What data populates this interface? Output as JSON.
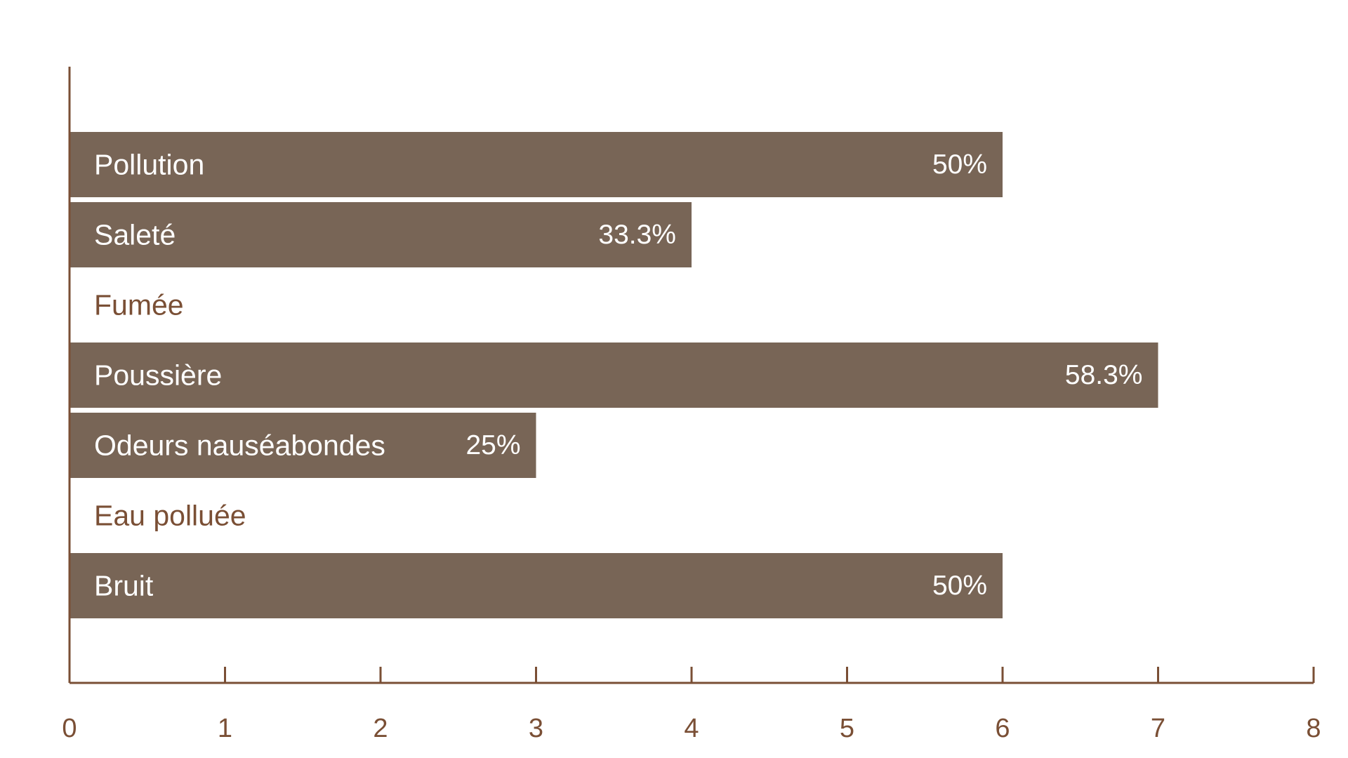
{
  "chart_data": {
    "type": "bar",
    "orientation": "horizontal",
    "categories": [
      "Pollution",
      "Saleté",
      "Fumée",
      "Poussière",
      "Odeurs nauséabondes",
      "Eau polluée",
      "Bruit"
    ],
    "values": [
      6,
      4,
      0,
      7,
      3,
      0,
      6
    ],
    "value_labels": [
      "50%",
      "33.3%",
      "",
      "58.3%",
      "25%",
      "",
      "50%"
    ],
    "xlim": [
      0,
      8
    ],
    "x_ticks": [
      "0",
      "1",
      "2",
      "3",
      "4",
      "5",
      "6",
      "7",
      "8"
    ],
    "title": "",
    "xlabel": "",
    "ylabel": "",
    "grid": false,
    "legend": "none",
    "colors": {
      "bar": "#786556",
      "axis": "#7a4f35",
      "label_on_bar": "#ffffff",
      "label_off_bar": "#7a4f35",
      "tick_text": "#7a4f35"
    }
  }
}
